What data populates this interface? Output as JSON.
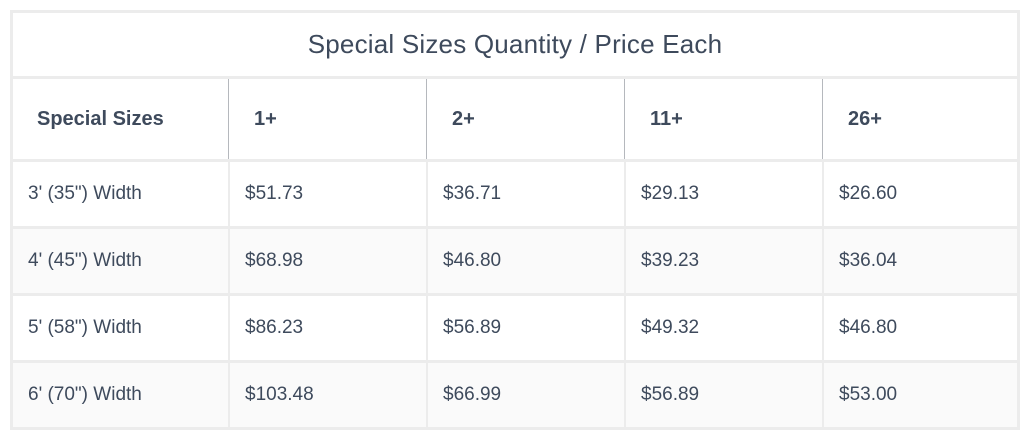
{
  "title": "Special Sizes Quantity / Price Each",
  "headers": [
    "Special Sizes",
    "1+",
    "2+",
    "11+",
    "26+"
  ],
  "rows": [
    [
      "3' (35\") Width",
      "$51.73",
      "$36.71",
      "$29.13",
      "$26.60"
    ],
    [
      "4' (45\") Width",
      "$68.98",
      "$46.80",
      "$39.23",
      "$36.04"
    ],
    [
      "5' (58\") Width",
      "$86.23",
      "$56.89",
      "$49.32",
      "$46.80"
    ],
    [
      "6' (70\") Width",
      "$103.48",
      "$66.99",
      "$56.89",
      "$53.00"
    ]
  ]
}
